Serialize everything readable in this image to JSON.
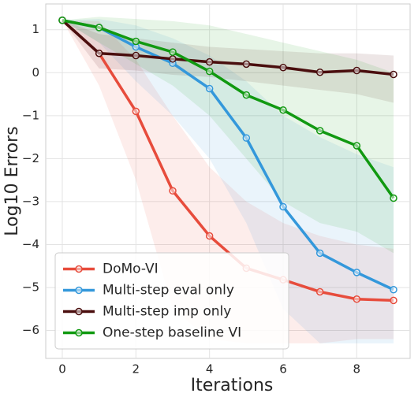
{
  "chart_data": {
    "type": "line",
    "xlabel": "Iterations",
    "ylabel": "Log10 Errors",
    "x": [
      0,
      1,
      2,
      3,
      4,
      5,
      6,
      7,
      8,
      9
    ],
    "xlim": [
      -0.45,
      9.45
    ],
    "ylim": [
      -6.65,
      1.6
    ],
    "xticks": [
      0,
      2,
      4,
      6,
      8
    ],
    "yticks": [
      1,
      0,
      {
        "value": -1,
        "label": "−1"
      },
      {
        "value": -2,
        "label": "−2"
      },
      {
        "value": -3,
        "label": "−3"
      },
      {
        "value": -4,
        "label": "−4"
      },
      {
        "value": -5,
        "label": "−5"
      },
      {
        "value": -6,
        "label": "−6"
      }
    ],
    "grid": true,
    "legend": "lower left",
    "series": [
      {
        "name": "DoMo-VI",
        "color": "#e74c3c",
        "values": [
          1.22,
          0.45,
          -0.9,
          -2.75,
          -3.8,
          -4.55,
          -4.82,
          -5.1,
          -5.27,
          -5.3
        ],
        "upper": [
          1.22,
          1.2,
          0.3,
          -1.0,
          -2.2,
          -3.0,
          -3.5,
          -3.8,
          -4.0,
          -4.1
        ],
        "lower": [
          1.22,
          -0.3,
          -2.5,
          -5.5,
          -6.2,
          -6.3,
          -6.3,
          -6.3,
          -6.2,
          -6.2
        ]
      },
      {
        "name": "Multi-step eval only",
        "color": "#3498db",
        "values": [
          1.22,
          1.05,
          0.6,
          0.22,
          -0.37,
          -1.52,
          -3.12,
          -4.2,
          -4.65,
          -5.05
        ],
        "upper": [
          1.22,
          1.25,
          1.1,
          0.8,
          0.4,
          -0.2,
          -1.0,
          -1.5,
          -1.9,
          -2.2
        ],
        "lower": [
          1.22,
          0.7,
          -0.2,
          -1.0,
          -2.0,
          -3.5,
          -5.5,
          -6.3,
          -6.3,
          -6.3
        ]
      },
      {
        "name": "Multi-step imp only",
        "color": "#4a0e0e",
        "values": [
          1.22,
          0.45,
          0.4,
          0.32,
          0.25,
          0.2,
          0.12,
          0.01,
          0.05,
          -0.04
        ],
        "upper": [
          1.22,
          0.9,
          0.8,
          0.7,
          0.6,
          0.55,
          0.5,
          0.45,
          0.45,
          0.4
        ],
        "lower": [
          1.22,
          0.1,
          0.05,
          -0.05,
          -0.1,
          -0.2,
          -0.3,
          -0.4,
          -0.5,
          -0.7
        ]
      },
      {
        "name": "One-step baseline VI",
        "color": "#119911",
        "values": [
          1.22,
          1.05,
          0.73,
          0.48,
          0.03,
          -0.52,
          -0.87,
          -1.35,
          -1.7,
          -2.92
        ],
        "upper": [
          1.22,
          1.3,
          1.25,
          1.2,
          1.1,
          0.9,
          0.7,
          0.5,
          0.3,
          0.0
        ],
        "lower": [
          1.22,
          0.7,
          0.2,
          -0.3,
          -1.0,
          -2.0,
          -3.0,
          -3.5,
          -3.7,
          -4.2
        ]
      }
    ]
  }
}
